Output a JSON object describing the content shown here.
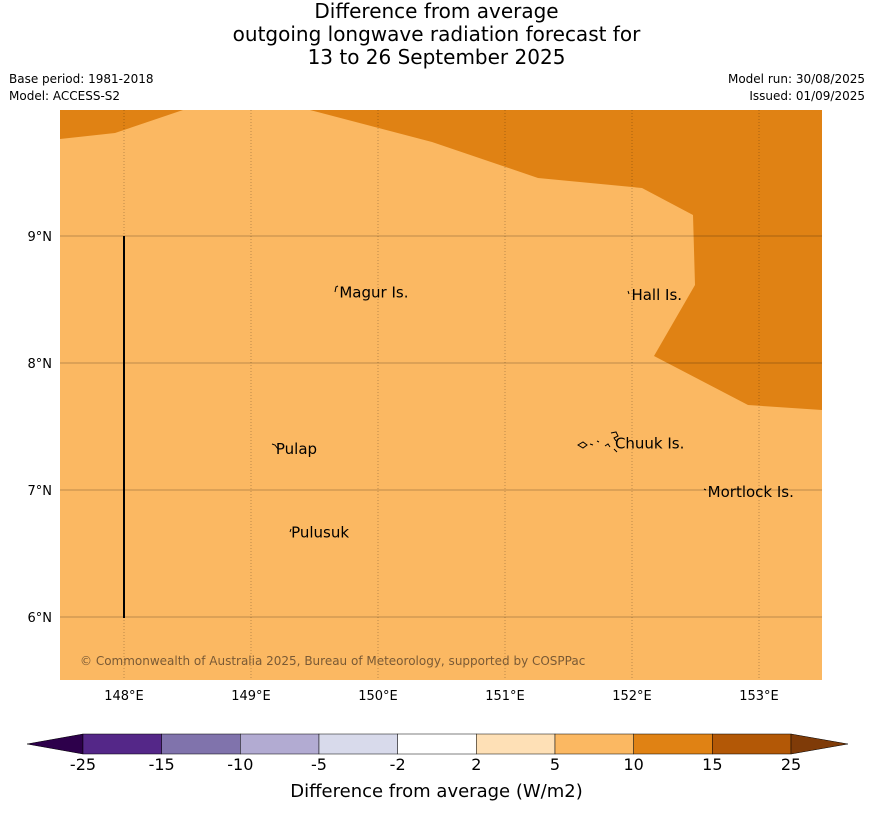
{
  "title": {
    "line1": "Difference from average",
    "line2": "outgoing longwave radiation forecast for",
    "line3": "13 to 26 September 2025"
  },
  "meta": {
    "base_period": "Base period: 1981-2018",
    "model": "Model: ACCESS-S2",
    "model_run": "Model run: 30/08/2025",
    "issued": "Issued: 01/09/2025"
  },
  "map": {
    "lon_ticks": [
      "148°E",
      "149°E",
      "150°E",
      "151°E",
      "152°E",
      "153°E"
    ],
    "lat_ticks": [
      "9°N",
      "8°N",
      "7°N",
      "6°N"
    ],
    "places": [
      {
        "name": "Magur Is.",
        "lon": 149.68,
        "lat": 8.57
      },
      {
        "name": "Hall Is.",
        "lon": 151.98,
        "lat": 8.55
      },
      {
        "name": "Pulap",
        "lon": 149.18,
        "lat": 7.34
      },
      {
        "name": "Chuuk Is.",
        "lon": 151.85,
        "lat": 7.38
      },
      {
        "name": "Mortlock Is.",
        "lon": 152.58,
        "lat": 7.0
      },
      {
        "name": "Pulusuk",
        "lon": 149.3,
        "lat": 6.68
      }
    ],
    "credit": "© Commonwealth of Australia 2025, Bureau of Meteorology, supported by COSPPac",
    "colors": {
      "band_5_10": "#fbb862",
      "band_10_15": "#e08214",
      "grid": "#000000"
    }
  },
  "colorbar": {
    "ticks": [
      "-25",
      "-15",
      "-10",
      "-5",
      "-2",
      "2",
      "5",
      "10",
      "15",
      "25"
    ],
    "colors": [
      "#2d004b",
      "#542788",
      "#8073ac",
      "#b2abd2",
      "#d8daeb",
      "#ffffff",
      "#fee0b6",
      "#fbb862",
      "#e08214",
      "#b35806",
      "#7f3b08"
    ],
    "label": "Difference from average (W/m2)"
  }
}
